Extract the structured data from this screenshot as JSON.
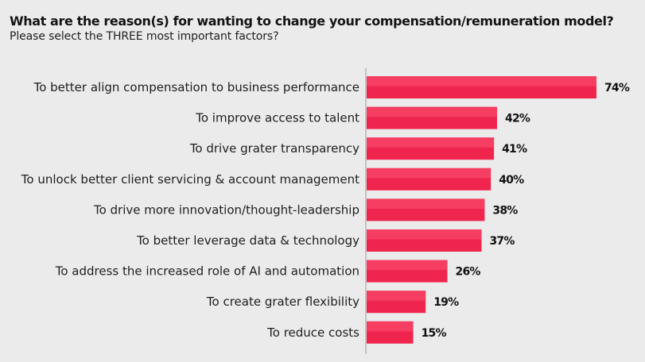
{
  "header": {
    "title": "What are the reason(s) for wanting to change your compensation/remuneration model?",
    "subtitle": "Please select the THREE most important factors?"
  },
  "colors": {
    "background": "#ebebeb",
    "bar": "#f0254e",
    "bar_highlight": "#f7476a",
    "axis": "#9a9a9a"
  },
  "chart_data": {
    "type": "bar",
    "orientation": "horizontal",
    "title": "What are the reason(s) for wanting to change your compensation/remuneration model?",
    "subtitle": "Please select the THREE most important factors?",
    "categories": [
      "To better align compensation to business performance",
      "To improve access to talent",
      "To drive grater transparency",
      "To unlock better client servicing & account management",
      "To drive more innovation/thought-leadership",
      "To better leverage data & technology",
      "To address the increased role of AI and automation",
      "To create grater flexibility",
      "To reduce costs"
    ],
    "values": [
      74,
      42,
      41,
      40,
      38,
      37,
      26,
      19,
      15
    ],
    "value_labels": [
      "74%",
      "42%",
      "41%",
      "40%",
      "38%",
      "37%",
      "26%",
      "19%",
      "15%"
    ],
    "unit": "%",
    "xlim": [
      0,
      80
    ],
    "xlabel": "",
    "ylabel": "",
    "grid": false,
    "legend": "none"
  }
}
